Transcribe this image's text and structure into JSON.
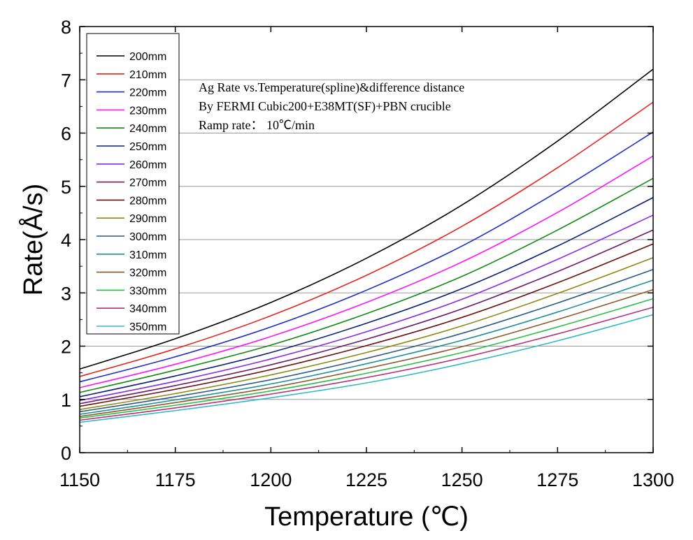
{
  "chart_data": {
    "type": "line",
    "title": "",
    "xlabel": "Temperature (℃)",
    "ylabel": "Rate(Å/s)",
    "xlim": [
      1150,
      1300
    ],
    "ylim": [
      0,
      8
    ],
    "x_ticks": [
      1150,
      1175,
      1200,
      1225,
      1250,
      1275,
      1300
    ],
    "y_ticks": [
      0,
      1,
      2,
      3,
      4,
      5,
      6,
      7,
      8
    ],
    "grid": "horizontal",
    "legend_position": "top-left",
    "annotations": [
      "Ag Rate vs.Temperature(spline)&difference distance",
      "By FERMI Cubic200+E38MT(SF)+PBN crucible",
      "Ramp rate：  10℃/min"
    ],
    "x": [
      1150,
      1175,
      1200,
      1225,
      1250,
      1275,
      1300
    ],
    "series": [
      {
        "name": "200mm",
        "color": "#000000",
        "values": [
          1.57,
          2.14,
          2.82,
          3.65,
          4.65,
          5.85,
          7.2
        ]
      },
      {
        "name": "210mm",
        "color": "#e8231e",
        "values": [
          1.43,
          1.95,
          2.57,
          3.33,
          4.25,
          5.35,
          6.58
        ]
      },
      {
        "name": "220mm",
        "color": "#1f2ec4",
        "values": [
          1.33,
          1.8,
          2.36,
          3.05,
          3.88,
          4.9,
          6.02
        ]
      },
      {
        "name": "230mm",
        "color": "#ff14ff",
        "values": [
          1.22,
          1.66,
          2.18,
          2.82,
          3.58,
          4.51,
          5.57
        ]
      },
      {
        "name": "240mm",
        "color": "#128a12",
        "values": [
          1.13,
          1.55,
          2.02,
          2.61,
          3.31,
          4.18,
          5.15
        ]
      },
      {
        "name": "250mm",
        "color": "#0a1e78",
        "values": [
          1.05,
          1.44,
          1.88,
          2.43,
          3.08,
          3.88,
          4.79
        ]
      },
      {
        "name": "260mm",
        "color": "#8a2be2",
        "values": [
          0.98,
          1.34,
          1.76,
          2.27,
          2.88,
          3.63,
          4.46
        ]
      },
      {
        "name": "270mm",
        "color": "#6b1a6b",
        "values": [
          0.92,
          1.26,
          1.65,
          2.13,
          2.7,
          3.4,
          4.18
        ]
      },
      {
        "name": "280mm",
        "color": "#6b0f0f",
        "values": [
          0.87,
          1.19,
          1.56,
          2.01,
          2.54,
          3.19,
          3.92
        ]
      },
      {
        "name": "290mm",
        "color": "#8c8a14",
        "values": [
          0.81,
          1.11,
          1.46,
          1.88,
          2.38,
          2.99,
          3.66
        ]
      },
      {
        "name": "300mm",
        "color": "#2d5a82",
        "values": [
          0.77,
          1.05,
          1.37,
          1.77,
          2.24,
          2.81,
          3.44
        ]
      },
      {
        "name": "310mm",
        "color": "#1f8f9f",
        "values": [
          0.72,
          0.99,
          1.29,
          1.67,
          2.11,
          2.64,
          3.24
        ]
      },
      {
        "name": "320mm",
        "color": "#8b5a2b",
        "values": [
          0.68,
          0.94,
          1.22,
          1.58,
          1.99,
          2.5,
          3.06
        ]
      },
      {
        "name": "330mm",
        "color": "#2bbf4a",
        "values": [
          0.65,
          0.89,
          1.16,
          1.49,
          1.88,
          2.36,
          2.89
        ]
      },
      {
        "name": "340mm",
        "color": "#b82e7a",
        "values": [
          0.61,
          0.84,
          1.1,
          1.41,
          1.78,
          2.23,
          2.73
        ]
      },
      {
        "name": "350mm",
        "color": "#35b8c8",
        "values": [
          0.57,
          0.79,
          1.03,
          1.31,
          1.67,
          2.1,
          2.59
        ]
      }
    ]
  }
}
